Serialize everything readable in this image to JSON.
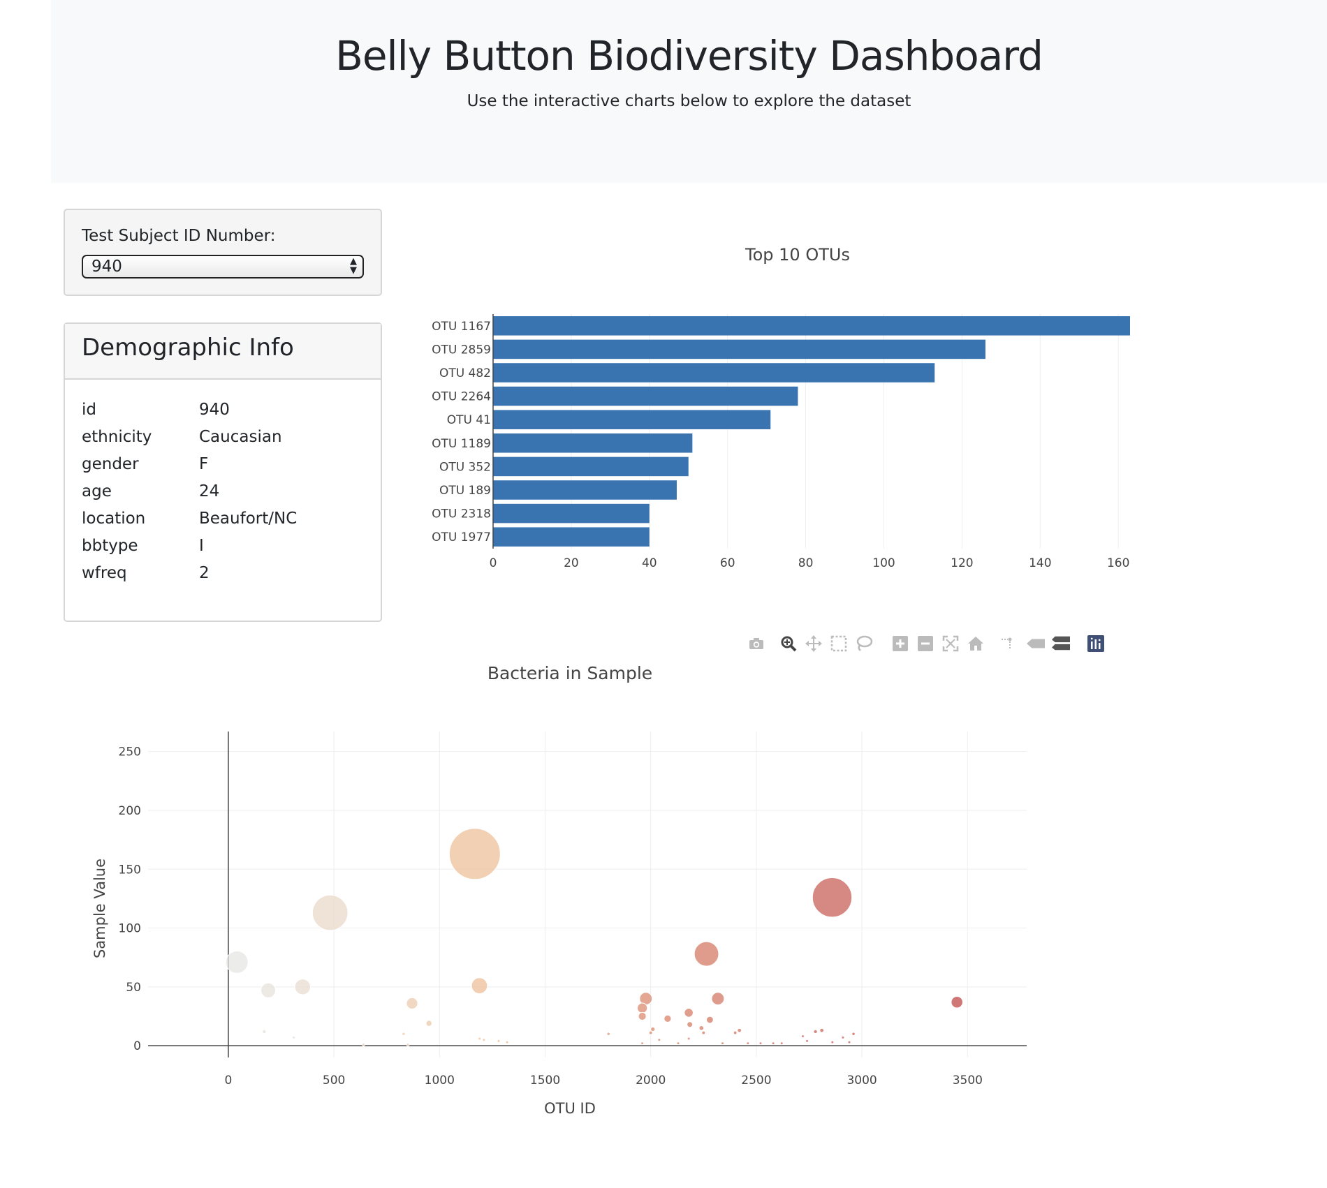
{
  "header": {
    "title": "Belly Button Biodiversity Dashboard",
    "subtitle": "Use the interactive charts below to explore the dataset"
  },
  "selector": {
    "label": "Test Subject ID Number:",
    "value": "940"
  },
  "demographics": {
    "title": "Demographic Info",
    "rows": [
      {
        "key": "id",
        "value": "940"
      },
      {
        "key": "ethnicity",
        "value": "Caucasian"
      },
      {
        "key": "gender",
        "value": "F"
      },
      {
        "key": "age",
        "value": "24"
      },
      {
        "key": "location",
        "value": "Beaufort/NC"
      },
      {
        "key": "bbtype",
        "value": "I"
      },
      {
        "key": "wfreq",
        "value": "2"
      }
    ]
  },
  "toolbar": {
    "icons": [
      "camera-icon",
      "zoom-icon",
      "pan-icon",
      "box-select-icon",
      "lasso-icon",
      "zoom-in-icon",
      "zoom-out-icon",
      "autoscale-icon",
      "reset-axes-icon",
      "spike-lines-icon",
      "hover-closest-icon",
      "hover-compare-icon",
      "plotly-logo-icon"
    ]
  },
  "chart_data": [
    {
      "type": "bar",
      "orientation": "horizontal",
      "title": "Top 10 OTUs",
      "categories": [
        "OTU 1167",
        "OTU 2859",
        "OTU 482",
        "OTU 2264",
        "OTU 41",
        "OTU 1189",
        "OTU 352",
        "OTU 189",
        "OTU 2318",
        "OTU 1977"
      ],
      "values": [
        163,
        126,
        113,
        78,
        71,
        51,
        50,
        47,
        40,
        40
      ],
      "xlim": [
        0,
        163
      ],
      "xticks": [
        0,
        20,
        40,
        60,
        80,
        100,
        120,
        140,
        160
      ],
      "color": "#3a74b0",
      "grid": true
    },
    {
      "type": "scatter",
      "variant": "bubble",
      "title": "Bacteria in Sample",
      "xlabel": "OTU ID",
      "ylabel": "Sample Value",
      "xlim": [
        -380,
        3780
      ],
      "ylim": [
        -10,
        267
      ],
      "xticks": [
        0,
        500,
        1000,
        1500,
        2000,
        2500,
        3000,
        3500
      ],
      "yticks": [
        0,
        50,
        100,
        150,
        200,
        250
      ],
      "colorscale": "white-to-dark-red",
      "grid": true,
      "points": [
        {
          "x": 41,
          "y": 71
        },
        {
          "x": 189,
          "y": 47
        },
        {
          "x": 352,
          "y": 50
        },
        {
          "x": 482,
          "y": 113
        },
        {
          "x": 1167,
          "y": 163
        },
        {
          "x": 1189,
          "y": 51
        },
        {
          "x": 1977,
          "y": 40
        },
        {
          "x": 2264,
          "y": 78
        },
        {
          "x": 2318,
          "y": 40
        },
        {
          "x": 2859,
          "y": 126
        },
        {
          "x": 3450,
          "y": 37
        },
        {
          "x": 870,
          "y": 36
        },
        {
          "x": 950,
          "y": 19
        },
        {
          "x": 1960,
          "y": 32
        },
        {
          "x": 1960,
          "y": 25
        },
        {
          "x": 2080,
          "y": 23
        },
        {
          "x": 2180,
          "y": 28
        },
        {
          "x": 2185,
          "y": 18
        },
        {
          "x": 2280,
          "y": 22
        },
        {
          "x": 2240,
          "y": 15
        },
        {
          "x": 2010,
          "y": 14
        },
        {
          "x": 2420,
          "y": 13
        },
        {
          "x": 2400,
          "y": 11
        },
        {
          "x": 2250,
          "y": 11
        },
        {
          "x": 2000,
          "y": 11
        },
        {
          "x": 2810,
          "y": 13
        },
        {
          "x": 2780,
          "y": 12
        },
        {
          "x": 2960,
          "y": 10
        },
        {
          "x": 2720,
          "y": 8
        },
        {
          "x": 2910,
          "y": 7
        },
        {
          "x": 1800,
          "y": 10
        },
        {
          "x": 170,
          "y": 12
        },
        {
          "x": 830,
          "y": 10
        },
        {
          "x": 310,
          "y": 7
        },
        {
          "x": 2040,
          "y": 5
        },
        {
          "x": 2180,
          "y": 6
        },
        {
          "x": 1190,
          "y": 6
        },
        {
          "x": 1210,
          "y": 5
        },
        {
          "x": 1280,
          "y": 4
        },
        {
          "x": 1320,
          "y": 3
        },
        {
          "x": 2740,
          "y": 4
        },
        {
          "x": 2940,
          "y": 3
        },
        {
          "x": 2860,
          "y": 3
        },
        {
          "x": 2580,
          "y": 2
        },
        {
          "x": 2520,
          "y": 2
        },
        {
          "x": 2460,
          "y": 2
        },
        {
          "x": 1960,
          "y": 2
        },
        {
          "x": 2130,
          "y": 2
        },
        {
          "x": 2340,
          "y": 2
        },
        {
          "x": 850,
          "y": 1
        },
        {
          "x": 640,
          "y": 1
        },
        {
          "x": 2620,
          "y": 2
        }
      ]
    }
  ]
}
